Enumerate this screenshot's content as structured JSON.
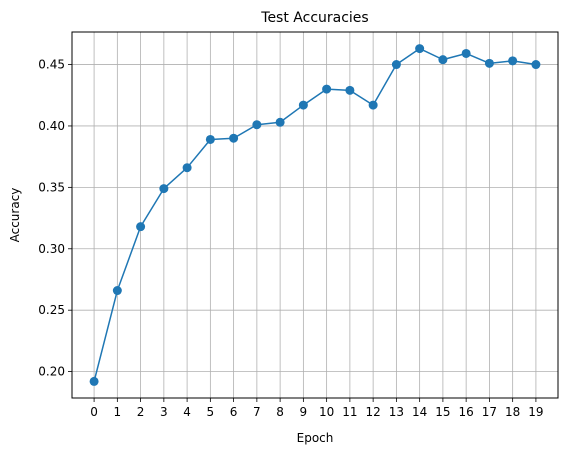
{
  "chart_data": {
    "type": "line",
    "title": "Test Accuracies",
    "xlabel": "Epoch",
    "ylabel": "Accuracy",
    "x": [
      0,
      1,
      2,
      3,
      4,
      5,
      6,
      7,
      8,
      9,
      10,
      11,
      12,
      13,
      14,
      15,
      16,
      17,
      18,
      19
    ],
    "series": [
      {
        "values": [
          0.192,
          0.266,
          0.318,
          0.349,
          0.366,
          0.389,
          0.39,
          0.401,
          0.403,
          0.417,
          0.43,
          0.429,
          0.417,
          0.45,
          0.463,
          0.454,
          0.459,
          0.451,
          0.453,
          0.45
        ],
        "color": "#1f77b4",
        "marker": "circle"
      }
    ],
    "xticks": [
      "0",
      "1",
      "2",
      "3",
      "4",
      "5",
      "6",
      "7",
      "8",
      "9",
      "10",
      "11",
      "12",
      "13",
      "14",
      "15",
      "16",
      "17",
      "18",
      "19"
    ],
    "yticks": [
      "0.20",
      "0.25",
      "0.30",
      "0.35",
      "0.40",
      "0.45"
    ],
    "ytick_values": [
      0.2,
      0.25,
      0.3,
      0.35,
      0.4,
      0.45
    ],
    "xlim": [
      -0.95,
      19.95
    ],
    "ylim": [
      0.1785,
      0.4765
    ],
    "grid": true,
    "grid_color": "#b0b0b0",
    "legend": "none"
  }
}
